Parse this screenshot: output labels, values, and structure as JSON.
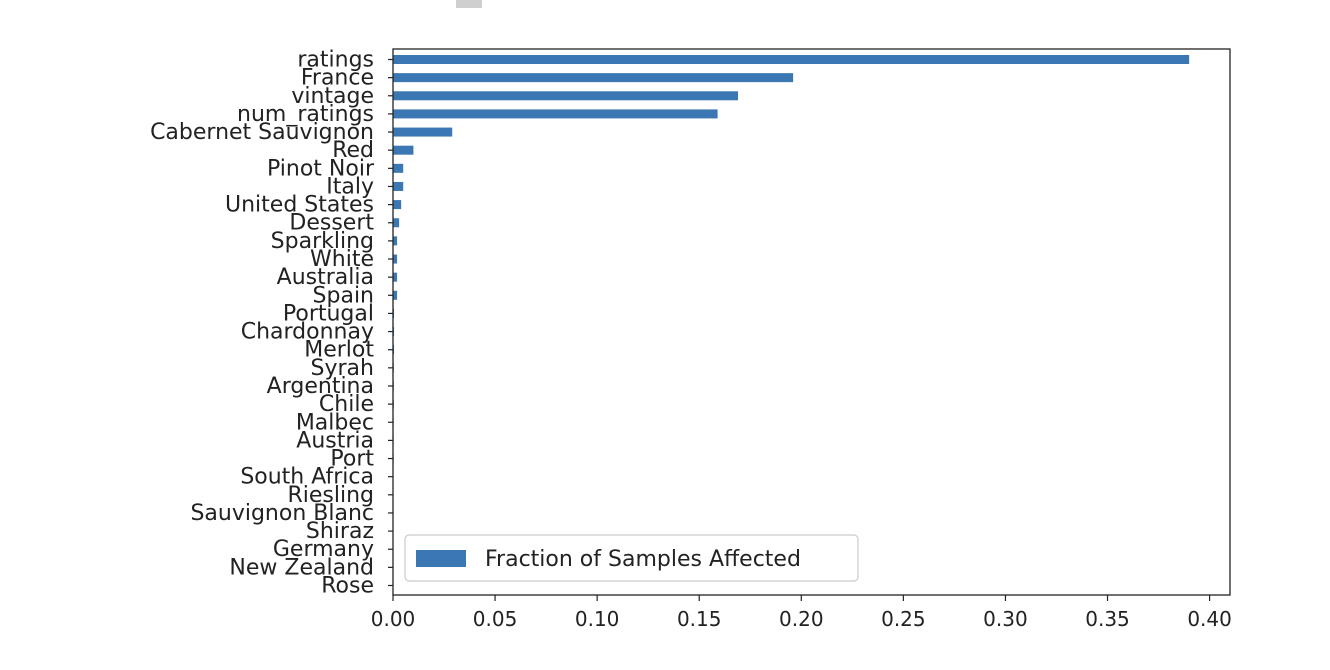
{
  "chart_data": {
    "type": "bar",
    "orientation": "horizontal",
    "title": "",
    "xlabel": "",
    "ylabel": "",
    "xlim": [
      0,
      0.41
    ],
    "xticks": [
      "0.00",
      "0.05",
      "0.10",
      "0.15",
      "0.20",
      "0.25",
      "0.30",
      "0.35",
      "0.40"
    ],
    "grid": false,
    "legend_position": "lower-left",
    "bar_color": "#3a77b3",
    "series": [
      {
        "name": "Fraction of Samples Affected",
        "categories": [
          "ratings",
          "France",
          "vintage",
          "num_ratings",
          "Cabernet Sauvignon",
          "Red",
          "Pinot Noir",
          "Italy",
          "United States",
          "Dessert",
          "Sparkling",
          "White",
          "Australia",
          "Spain",
          "Portugal",
          "Chardonnay",
          "Merlot",
          "Syrah",
          "Argentina",
          "Chile",
          "Malbec",
          "Austria",
          "Port",
          "South Africa",
          "Riesling",
          "Sauvignon Blanc",
          "Shiraz",
          "Germany",
          "New Zealand",
          "Rose"
        ],
        "values": [
          0.39,
          0.196,
          0.169,
          0.159,
          0.029,
          0.01,
          0.005,
          0.005,
          0.004,
          0.003,
          0.002,
          0.002,
          0.002,
          0.002,
          0.0005,
          0.0005,
          0.0005,
          0.0004,
          0.0004,
          0.0004,
          0.0003,
          0.0003,
          0.0003,
          0.0002,
          0.0002,
          0.0002,
          0.0002,
          0.0001,
          0.0001,
          0.0001
        ]
      }
    ]
  }
}
